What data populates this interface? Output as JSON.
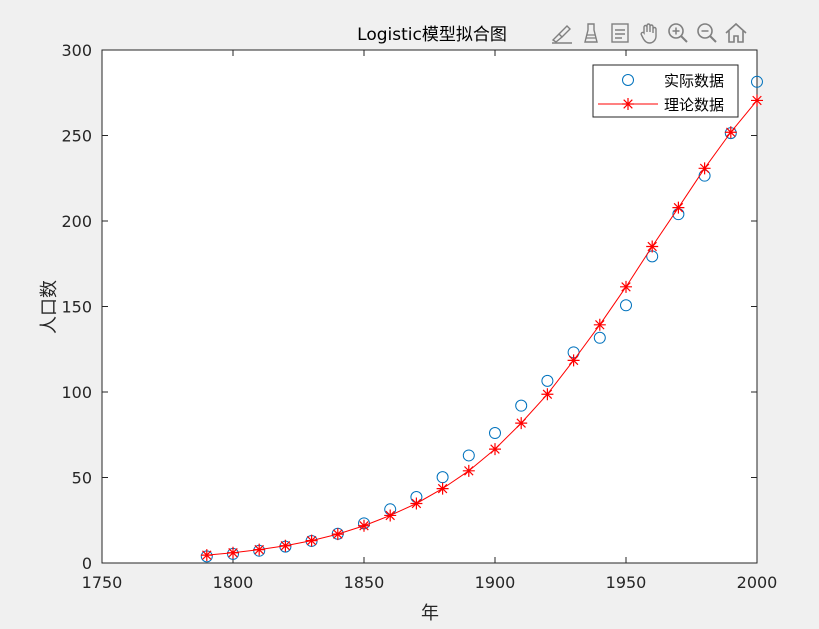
{
  "window": {
    "background": "#f0f0f0"
  },
  "toolbar": {
    "buttons": [
      {
        "name": "brush-edit-icon"
      },
      {
        "name": "data-cursor-icon"
      },
      {
        "name": "insert-legend-icon"
      },
      {
        "name": "pan-hand-icon"
      },
      {
        "name": "zoom-in-icon"
      },
      {
        "name": "zoom-out-icon"
      },
      {
        "name": "home-icon"
      }
    ]
  },
  "chart_data": {
    "type": "scatter",
    "title": "Logistic模型拟合图",
    "xlabel": "年",
    "ylabel": "人口数",
    "xlim": [
      1750,
      2000
    ],
    "ylim": [
      0,
      300
    ],
    "xticks": [
      1750,
      1800,
      1850,
      1900,
      1950,
      2000
    ],
    "yticks": [
      0,
      50,
      100,
      150,
      200,
      250,
      300
    ],
    "grid": false,
    "legend_position": "top-right",
    "series": [
      {
        "name": "实际数据",
        "style": "markers-circle",
        "color": "#0072bd",
        "x": [
          1790,
          1800,
          1810,
          1820,
          1830,
          1840,
          1850,
          1860,
          1870,
          1880,
          1890,
          1900,
          1910,
          1920,
          1930,
          1940,
          1950,
          1960,
          1970,
          1980,
          1990,
          2000
        ],
        "y": [
          3.9,
          5.3,
          7.2,
          9.6,
          12.9,
          17.1,
          23.2,
          31.4,
          38.6,
          50.2,
          62.9,
          76.0,
          92.0,
          106.5,
          123.2,
          131.7,
          150.7,
          179.3,
          204.0,
          226.5,
          251.4,
          281.4
        ]
      },
      {
        "name": "理论数据",
        "style": "line-asterisk",
        "color": "#ff0000",
        "x": [
          1790,
          1800,
          1810,
          1820,
          1830,
          1840,
          1850,
          1860,
          1870,
          1880,
          1890,
          1900,
          1910,
          1920,
          1930,
          1940,
          1950,
          1960,
          1970,
          1980,
          1990,
          2000
        ],
        "y": [
          4.6,
          6.0,
          7.8,
          10.1,
          13.1,
          16.9,
          21.8,
          27.8,
          34.8,
          43.5,
          53.9,
          66.6,
          81.8,
          98.7,
          118.5,
          139.3,
          161.5,
          185.1,
          207.8,
          230.8,
          251.9,
          270.5
        ]
      }
    ]
  }
}
